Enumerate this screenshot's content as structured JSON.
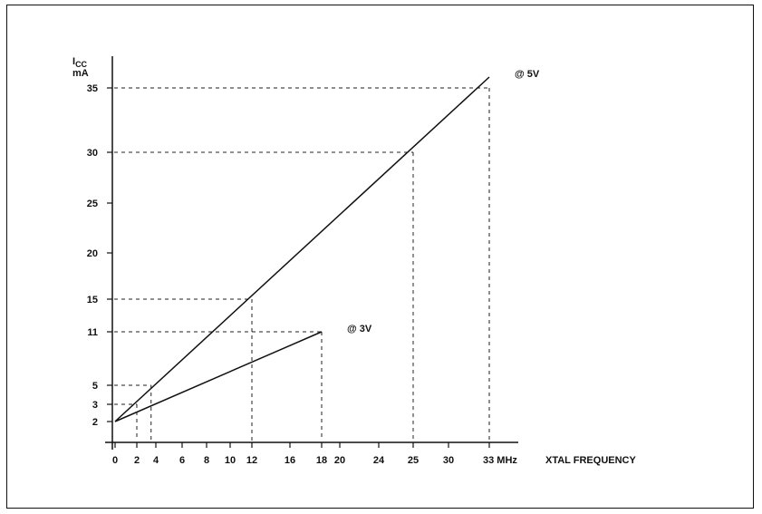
{
  "chart_data": {
    "type": "line",
    "ylabel_main": "I",
    "ylabel_sub": "CC",
    "ylabel_unit": "mA",
    "xlabel": "XTAL  FREQUENCY",
    "xlim": [
      0,
      33
    ],
    "ylim": [
      0,
      36
    ],
    "x_ticks": [
      {
        "value": 0,
        "label": "0"
      },
      {
        "value": 2,
        "label": "2"
      },
      {
        "value": 4,
        "label": "4"
      },
      {
        "value": 6,
        "label": "6"
      },
      {
        "value": 8,
        "label": "8"
      },
      {
        "value": 10,
        "label": "10"
      },
      {
        "value": 12,
        "label": "12"
      },
      {
        "value": 16,
        "label": "16"
      },
      {
        "value": 18,
        "label": "18"
      },
      {
        "value": 20,
        "label": "20"
      },
      {
        "value": 24,
        "label": "24"
      },
      {
        "value": 25,
        "label": "25"
      },
      {
        "value": 30,
        "label": "30"
      },
      {
        "value": 33,
        "label": "33 MHz"
      }
    ],
    "y_ticks": [
      {
        "value": 2,
        "label": "2"
      },
      {
        "value": 3,
        "label": "3"
      },
      {
        "value": 5,
        "label": "5"
      },
      {
        "value": 11,
        "label": "11"
      },
      {
        "value": 15,
        "label": "15"
      },
      {
        "value": 20,
        "label": "20"
      },
      {
        "value": 25,
        "label": "25"
      },
      {
        "value": 30,
        "label": "30"
      },
      {
        "value": 35,
        "label": "35"
      }
    ],
    "series": [
      {
        "name": "@ 5V",
        "points": [
          [
            0,
            2
          ],
          [
            33,
            36
          ]
        ]
      },
      {
        "name": "@ 3V",
        "points": [
          [
            0,
            2
          ],
          [
            18,
            11
          ]
        ]
      }
    ],
    "reference_points": [
      {
        "x": 33,
        "y": 35
      },
      {
        "x": 25,
        "y": 30
      },
      {
        "x": 12,
        "y": 15
      },
      {
        "x": 18,
        "y": 11
      },
      {
        "x": 3.5,
        "y": 5
      },
      {
        "x": 2,
        "y": 3
      }
    ],
    "grid": false,
    "legend": "inline at line ends"
  }
}
